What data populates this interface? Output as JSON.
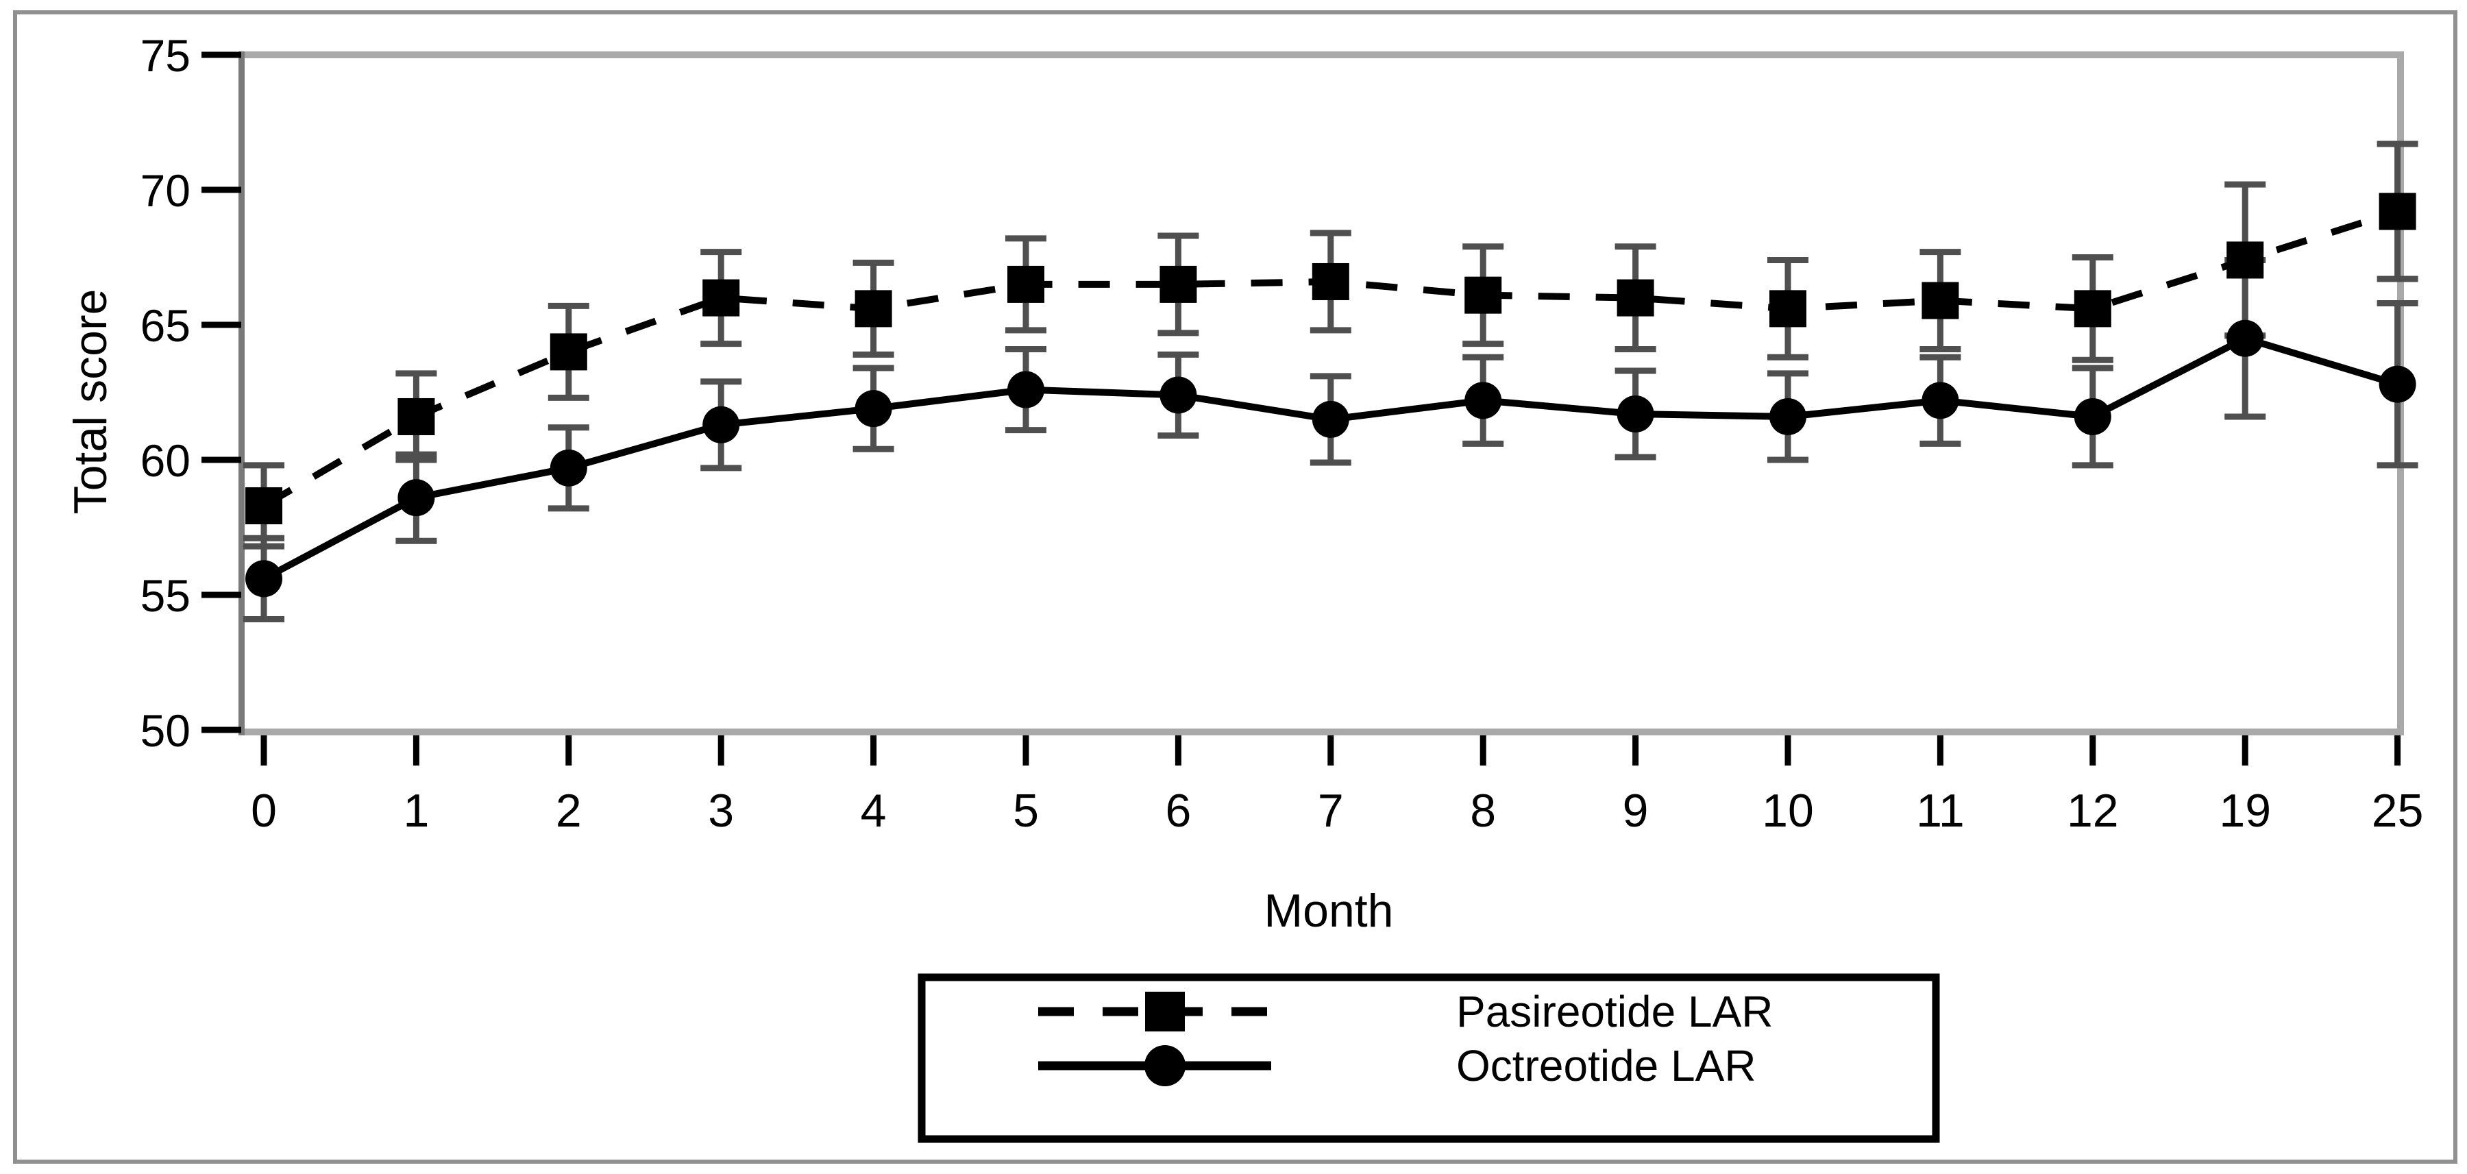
{
  "chart_data": {
    "type": "line",
    "title": "",
    "xlabel": "Month",
    "ylabel": "Total score",
    "categories": [
      "0",
      "1",
      "2",
      "3",
      "4",
      "5",
      "6",
      "7",
      "8",
      "9",
      "10",
      "11",
      "12",
      "19",
      "25"
    ],
    "ylim": [
      50,
      75
    ],
    "yticks": [
      50,
      55,
      60,
      65,
      70,
      75
    ],
    "grid": false,
    "error_bars": true,
    "legend_position": "bottom-center-boxed",
    "series": [
      {
        "name": "Pasireotide LAR",
        "marker": "square",
        "line_style": "dashed",
        "color": "#000000",
        "values": [
          58.3,
          61.6,
          64.0,
          66.0,
          65.6,
          66.5,
          66.5,
          66.6,
          66.1,
          66.0,
          65.6,
          65.9,
          65.6,
          67.4,
          69.2
        ],
        "errors": [
          1.5,
          1.6,
          1.7,
          1.7,
          1.7,
          1.7,
          1.8,
          1.8,
          1.8,
          1.9,
          1.8,
          1.8,
          1.9,
          2.8,
          2.5
        ]
      },
      {
        "name": "Octreotide LAR",
        "marker": "circle",
        "line_style": "solid",
        "color": "#000000",
        "values": [
          55.6,
          58.6,
          59.7,
          61.3,
          61.9,
          62.6,
          62.4,
          61.5,
          62.2,
          61.7,
          61.6,
          62.2,
          61.6,
          64.5,
          62.8
        ],
        "errors": [
          1.5,
          1.6,
          1.5,
          1.6,
          1.5,
          1.5,
          1.5,
          1.6,
          1.6,
          1.6,
          1.6,
          1.6,
          1.8,
          2.9,
          3.0
        ]
      }
    ],
    "colors": {
      "background": "#ffffff",
      "outer_border": "#909090",
      "plot_frame": "#a9a9a9",
      "y_axis_line": "#7a7a7a",
      "tick_mark": "#000000",
      "error_bar": "#4f4f4f",
      "series": "#000000",
      "text": "#000000"
    }
  }
}
